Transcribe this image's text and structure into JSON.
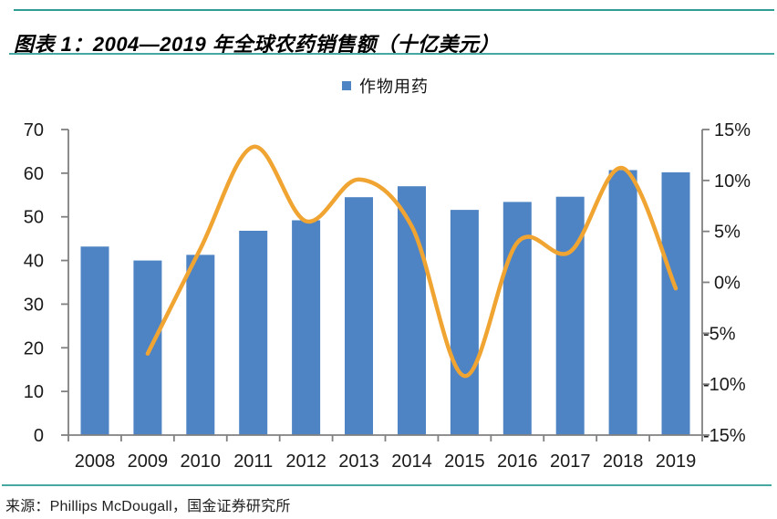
{
  "page": {
    "title": "图表 1：2004—2019 年全球农药销售额（十亿美元）",
    "source": "来源：Phillips McDougall，国金证券研究所"
  },
  "legend": {
    "label": "作物用药"
  },
  "colors": {
    "bar": "#4E84C4",
    "line": "#F0A432",
    "divider_top": "#2F9E92",
    "divider_thin": "#45A9A1",
    "axis": "#808080",
    "label": "#1A1A1A"
  },
  "chart_data": {
    "type": "bar",
    "title": "图表 1：2004—2019 年全球农药销售额（十亿美元）",
    "categories": [
      "2008",
      "2009",
      "2010",
      "2011",
      "2012",
      "2013",
      "2014",
      "2015",
      "2016",
      "2017",
      "2018",
      "2019"
    ],
    "series": [
      {
        "name": "作物用药",
        "type": "bar",
        "axis": "left",
        "values": [
          43.2,
          40.0,
          41.3,
          46.8,
          49.2,
          54.5,
          57.0,
          51.6,
          53.4,
          54.6,
          60.7,
          60.2
        ]
      },
      {
        "name": "",
        "type": "line",
        "axis": "right",
        "values": [
          null,
          -7.0,
          3.3,
          13.3,
          6.0,
          10.1,
          5.5,
          -9.2,
          3.9,
          3.0,
          11.2,
          -0.6
        ]
      }
    ],
    "left_axis": {
      "min": 0,
      "max": 70,
      "step": 10
    },
    "right_axis": {
      "min": -15,
      "max": 15,
      "step": 5,
      "suffix": "%"
    },
    "legend_position": "top",
    "grid": false
  }
}
